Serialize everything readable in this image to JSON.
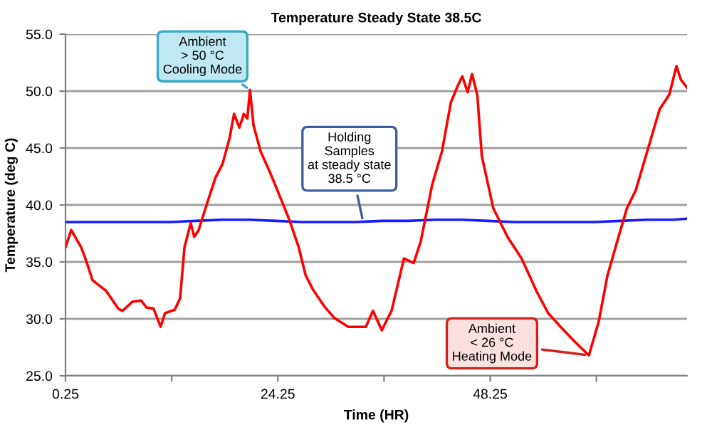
{
  "chart_data": {
    "type": "line",
    "title": "Temperature Steady State 38.5C",
    "xlabel": "Time (HR)",
    "ylabel": "Temperature (deg C)",
    "xlim": [
      0.25,
      70.5
    ],
    "ylim": [
      25,
      55
    ],
    "xticks": [
      0.25,
      {
        "value": 12.25,
        "label": null
      },
      24.25,
      {
        "value": 36.25,
        "label": null
      },
      48.25,
      {
        "value": 60.25,
        "label": null
      }
    ],
    "yticks": [
      {
        "value": 25,
        "label": "25.0"
      },
      {
        "value": 30,
        "label": "30.0"
      },
      {
        "value": 35,
        "label": "35.0"
      },
      {
        "value": 40,
        "label": "40.0"
      },
      {
        "value": 45,
        "label": "45.0"
      },
      {
        "value": 50,
        "label": "50.0"
      },
      {
        "value": 55,
        "label": "55.0"
      }
    ],
    "grid": "y",
    "legend": false,
    "marker": "none",
    "line_style": "solid",
    "series": [
      {
        "color": "#ff0000",
        "x": [
          0.25,
          0.9,
          2.0,
          2.5,
          3.3,
          4.6,
          4.8,
          6.2,
          6.7,
          7.8,
          8.8,
          9.4,
          10.2,
          11.0,
          11.5,
          12.6,
          13.2,
          13.7,
          14.4,
          14.8,
          15.3,
          15.7,
          16.4,
          17.2,
          18.0,
          18.8,
          19.3,
          19.9,
          20.4,
          20.8,
          21.1,
          21.5,
          22.3,
          23.4,
          24.4,
          25.5,
          26.6,
          27.4,
          28.2,
          29.5,
          30.6,
          32.2,
          33.1,
          34.2,
          35.0,
          36.0,
          37.1,
          38.5,
          39.6,
          40.4,
          41.7,
          42.8,
          43.8,
          44.6,
          45.1,
          45.7,
          46.2,
          46.8,
          47.3,
          48.6,
          50.2,
          51.8,
          53.5,
          54.8,
          56.2,
          57.8,
          59.4,
          60.5,
          61.5,
          62.6,
          63.7,
          64.7,
          66.3,
          67.4,
          68.5,
          69.3,
          69.8,
          70.5
        ],
        "values": [
          36.3,
          37.8,
          36.3,
          35.3,
          33.4,
          32.6,
          32.5,
          30.9,
          30.7,
          31.5,
          31.6,
          31.0,
          30.9,
          29.3,
          30.5,
          30.8,
          31.8,
          36.3,
          38.4,
          37.2,
          37.8,
          38.8,
          40.5,
          42.4,
          43.6,
          45.9,
          48.0,
          46.8,
          48.0,
          47.6,
          50.1,
          47.0,
          44.7,
          42.8,
          40.9,
          38.8,
          36.3,
          33.8,
          32.6,
          31.1,
          30.1,
          29.3,
          29.3,
          29.3,
          30.7,
          29.0,
          30.7,
          35.3,
          34.9,
          36.8,
          41.8,
          44.7,
          49.0,
          50.5,
          51.3,
          49.9,
          51.5,
          49.6,
          44.3,
          39.7,
          37.2,
          35.3,
          32.4,
          30.5,
          29.3,
          28.0,
          26.8,
          29.7,
          33.8,
          36.8,
          39.7,
          41.3,
          45.5,
          48.4,
          49.7,
          52.2,
          51.0,
          50.3
        ]
      },
      {
        "color": "#1a1aff",
        "x": [
          0.25,
          3,
          6,
          9,
          12,
          15,
          18,
          21,
          24,
          27,
          30,
          33,
          36,
          39,
          42,
          45,
          48,
          51,
          54,
          57,
          60,
          63,
          66,
          69,
          70.5
        ],
        "values": [
          38.5,
          38.5,
          38.5,
          38.5,
          38.5,
          38.6,
          38.7,
          38.7,
          38.6,
          38.5,
          38.5,
          38.5,
          38.6,
          38.6,
          38.7,
          38.7,
          38.6,
          38.5,
          38.5,
          38.5,
          38.5,
          38.6,
          38.7,
          38.7,
          38.8
        ]
      }
    ],
    "annotations": [
      {
        "text": "Ambient\n> 50 °C\nCooling Mode",
        "x": 21.1,
        "y": 50.1
      },
      {
        "text": "Holding\nSamples\nat steady state\n38.5 °C",
        "x": 33.9,
        "y": 38.5
      },
      {
        "text": "Ambient\n< 26 °C\nHeating Mode",
        "x": 59.4,
        "y": 26.8
      }
    ]
  }
}
